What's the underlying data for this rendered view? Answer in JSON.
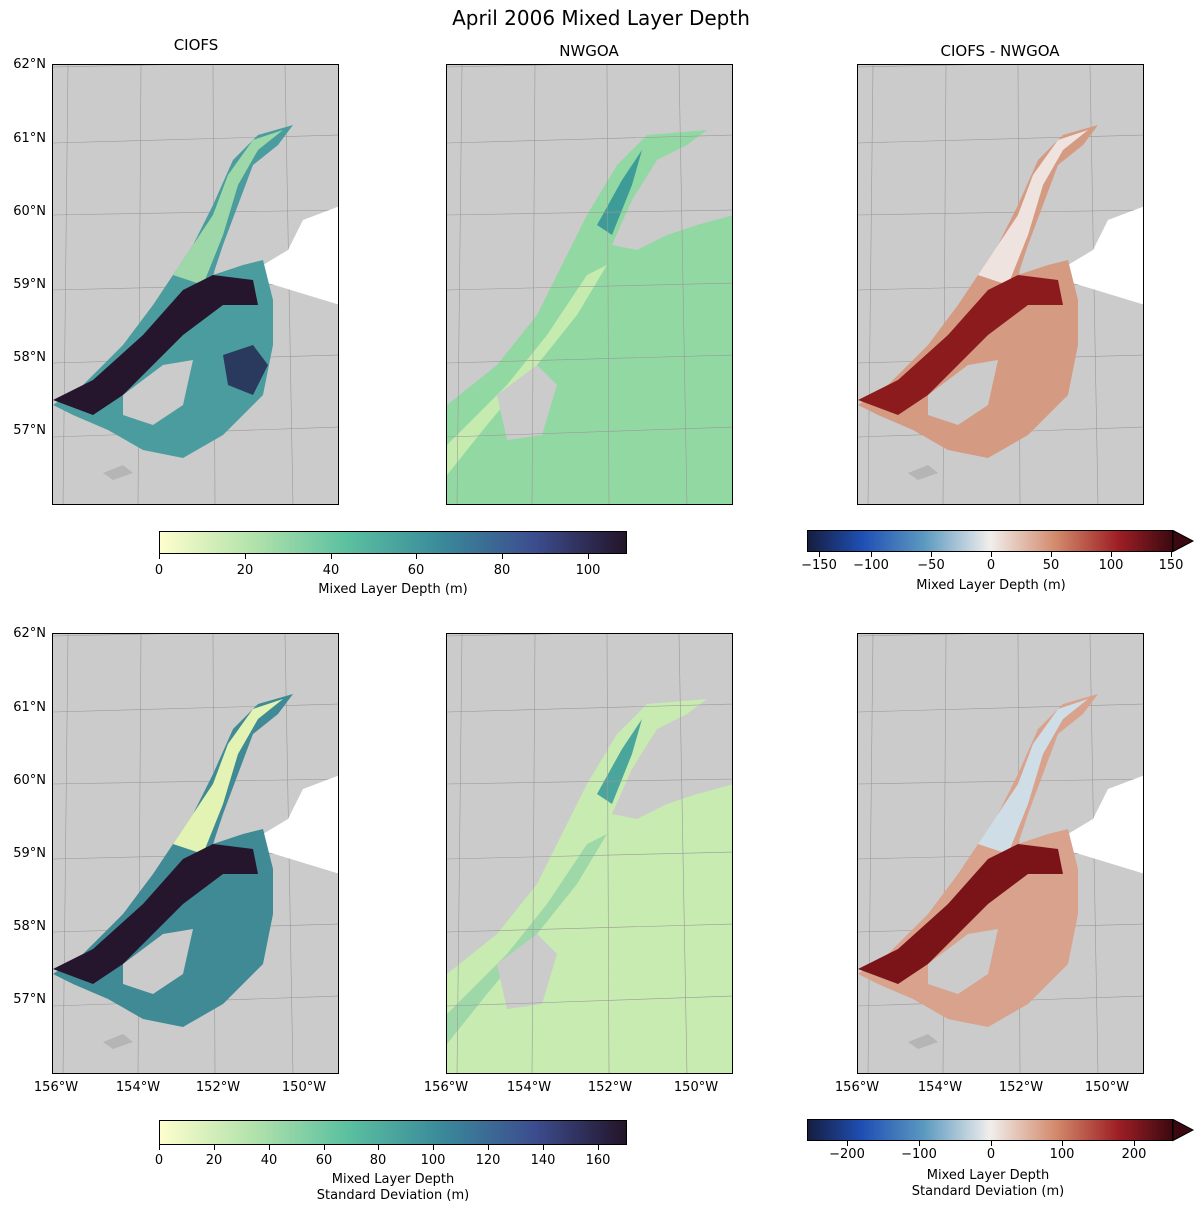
{
  "figure_title": "April 2006 Mixed Layer Depth",
  "column_titles": [
    "CIOFS",
    "NWGOA",
    "CIOFS - NWGOA"
  ],
  "lat_labels": [
    "62°N",
    "61°N",
    "60°N",
    "59°N",
    "58°N",
    "57°N"
  ],
  "lon_labels": [
    "156°W",
    "154°W",
    "152°W",
    "150°W"
  ],
  "colorbars": {
    "top_seq": {
      "ticks": [
        "0",
        "20",
        "40",
        "60",
        "80",
        "100"
      ],
      "label": "Mixed Layer Depth (m)"
    },
    "top_div": {
      "ticks": [
        "−150",
        "−100",
        "−50",
        "0",
        "50",
        "100",
        "150"
      ],
      "label": "Mixed Layer Depth (m)"
    },
    "bot_seq": {
      "ticks": [
        "0",
        "20",
        "40",
        "60",
        "80",
        "100",
        "120",
        "140",
        "160"
      ],
      "label1": "Mixed Layer Depth",
      "label2": "Standard Deviation (m)"
    },
    "bot_div": {
      "ticks": [
        "−200",
        "−100",
        "0",
        "100",
        "200"
      ],
      "label1": "Mixed Layer Depth",
      "label2": "Standard Deviation (m)"
    }
  },
  "colors": {
    "land": "#cbcbcb",
    "sea_nodata": "#ffffff",
    "deep_seq": "#2a1a33",
    "pos_div": "#6b0e14"
  },
  "chart_data": [
    {
      "type": "heatmap",
      "title": "CIOFS",
      "row": "mean",
      "variable": "Mixed Layer Depth (m)",
      "colorbar_range": [
        0,
        109
      ]
    },
    {
      "type": "heatmap",
      "title": "NWGOA",
      "row": "mean",
      "variable": "Mixed Layer Depth (m)",
      "colorbar_range": [
        0,
        109
      ]
    },
    {
      "type": "heatmap",
      "title": "CIOFS - NWGOA",
      "row": "mean",
      "variable": "Mixed Layer Depth (m)",
      "colorbar_range": [
        -155,
        150
      ],
      "extend": "max"
    },
    {
      "type": "heatmap",
      "title": "CIOFS",
      "row": "std",
      "variable": "Mixed Layer Depth Standard Deviation (m)",
      "colorbar_range": [
        0,
        170
      ]
    },
    {
      "type": "heatmap",
      "title": "NWGOA",
      "row": "std",
      "variable": "Mixed Layer Depth Standard Deviation (m)",
      "colorbar_range": [
        0,
        170
      ]
    },
    {
      "type": "heatmap",
      "title": "CIOFS - NWGOA",
      "row": "std",
      "variable": "Mixed Layer Depth Standard Deviation (m)",
      "colorbar_range": [
        -270,
        260
      ],
      "extend": "max"
    }
  ]
}
